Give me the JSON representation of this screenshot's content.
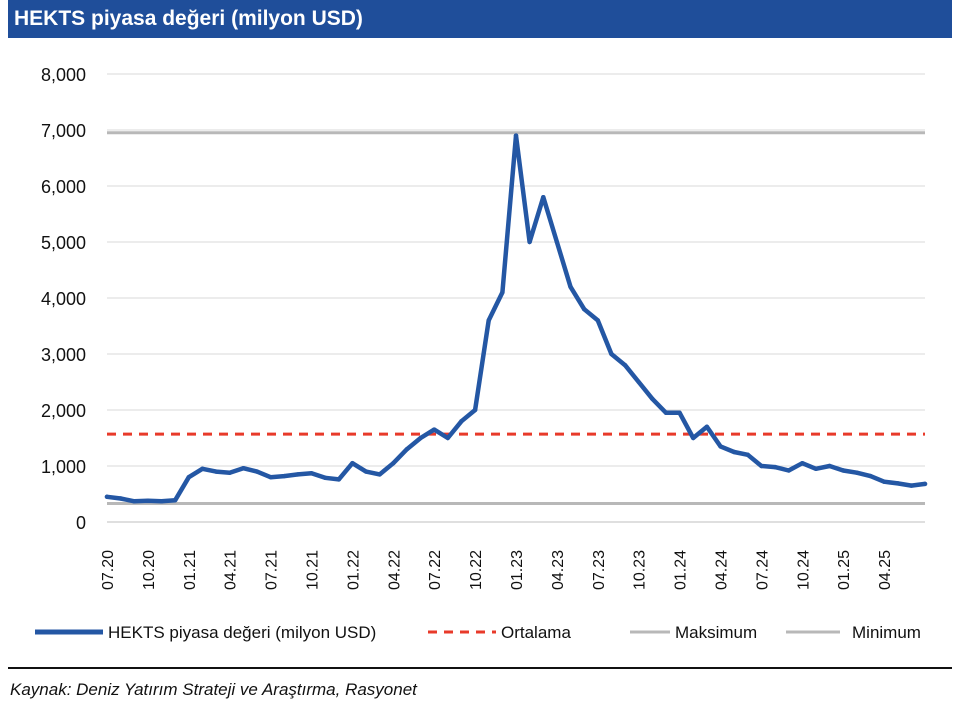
{
  "chart_data": {
    "type": "line",
    "title": "HEKTS piyasa değeri (milyon USD)",
    "xlabel": "",
    "ylabel": "",
    "ylim": [
      0,
      8000
    ],
    "yticks": [
      0,
      1000,
      2000,
      3000,
      4000,
      5000,
      6000,
      7000,
      8000
    ],
    "ytick_labels": [
      "0",
      "1,000",
      "2,000",
      "3,000",
      "4,000",
      "5,000",
      "6,000",
      "7,000",
      "8,000"
    ],
    "xticks": [
      "2020-07",
      "2020-10",
      "2021-01",
      "2021-04",
      "2021-07",
      "2021-10",
      "2022-01",
      "2022-04",
      "2022-07",
      "2022-10",
      "2023-01",
      "2023-04",
      "2023-07",
      "2023-10",
      "2024-01",
      "2024-04",
      "2024-07",
      "2024-10",
      "2025-01",
      "2025-04"
    ],
    "xtick_labels": [
      "07.20",
      "10.20",
      "01.21",
      "04.21",
      "07.21",
      "10.21",
      "01.22",
      "04.22",
      "07.22",
      "10.22",
      "01.23",
      "04.23",
      "07.23",
      "10.23",
      "01.24",
      "04.24",
      "07.24",
      "10.24",
      "01.25",
      "04.25"
    ],
    "xlim": [
      "2020-07",
      "2025-07"
    ],
    "grid": true,
    "legend_position": "bottom",
    "series": [
      {
        "name": "HEKTS piyasa değeri (milyon USD)",
        "color": "#2457a4",
        "style": "solid",
        "points": [
          [
            "2020-07",
            450
          ],
          [
            "2020-08",
            420
          ],
          [
            "2020-09",
            370
          ],
          [
            "2020-10",
            380
          ],
          [
            "2020-11",
            370
          ],
          [
            "2020-12",
            390
          ],
          [
            "2021-01",
            800
          ],
          [
            "2021-02",
            950
          ],
          [
            "2021-03",
            900
          ],
          [
            "2021-04",
            880
          ],
          [
            "2021-05",
            960
          ],
          [
            "2021-06",
            900
          ],
          [
            "2021-07",
            800
          ],
          [
            "2021-08",
            820
          ],
          [
            "2021-09",
            850
          ],
          [
            "2021-10",
            870
          ],
          [
            "2021-11",
            790
          ],
          [
            "2021-12",
            760
          ],
          [
            "2022-01",
            1050
          ],
          [
            "2022-02",
            900
          ],
          [
            "2022-03",
            850
          ],
          [
            "2022-04",
            1050
          ],
          [
            "2022-05",
            1300
          ],
          [
            "2022-06",
            1500
          ],
          [
            "2022-07",
            1650
          ],
          [
            "2022-08",
            1500
          ],
          [
            "2022-09",
            1800
          ],
          [
            "2022-10",
            2000
          ],
          [
            "2022-11",
            3600
          ],
          [
            "2022-12",
            4100
          ],
          [
            "2023-01",
            6900
          ],
          [
            "2023-02",
            5000
          ],
          [
            "2023-03",
            5800
          ],
          [
            "2023-04",
            5000
          ],
          [
            "2023-05",
            4200
          ],
          [
            "2023-06",
            3800
          ],
          [
            "2023-07",
            3600
          ],
          [
            "2023-08",
            3000
          ],
          [
            "2023-09",
            2800
          ],
          [
            "2023-10",
            2500
          ],
          [
            "2023-11",
            2200
          ],
          [
            "2023-12",
            1950
          ],
          [
            "2024-01",
            1950
          ],
          [
            "2024-02",
            1500
          ],
          [
            "2024-03",
            1700
          ],
          [
            "2024-04",
            1350
          ],
          [
            "2024-05",
            1250
          ],
          [
            "2024-06",
            1200
          ],
          [
            "2024-07",
            1000
          ],
          [
            "2024-08",
            980
          ],
          [
            "2024-09",
            920
          ],
          [
            "2024-10",
            1050
          ],
          [
            "2024-11",
            950
          ],
          [
            "2024-12",
            1000
          ],
          [
            "2025-01",
            920
          ],
          [
            "2025-02",
            880
          ],
          [
            "2025-03",
            820
          ],
          [
            "2025-04",
            720
          ],
          [
            "2025-05",
            690
          ],
          [
            "2025-06",
            650
          ],
          [
            "2025-07",
            680
          ]
        ]
      },
      {
        "name": "Ortalama",
        "color": "#e83a2a",
        "style": "dashed",
        "value": 1570
      },
      {
        "name": "Maksimum",
        "color": "#b8b8b8",
        "style": "solid",
        "value": 6950
      },
      {
        "name": "Minimum",
        "color": "#b8b8b8",
        "style": "solid",
        "value": 330
      }
    ],
    "source": "Kaynak: Deniz Yatırım Strateji ve Araştırma, Rasyonet"
  }
}
